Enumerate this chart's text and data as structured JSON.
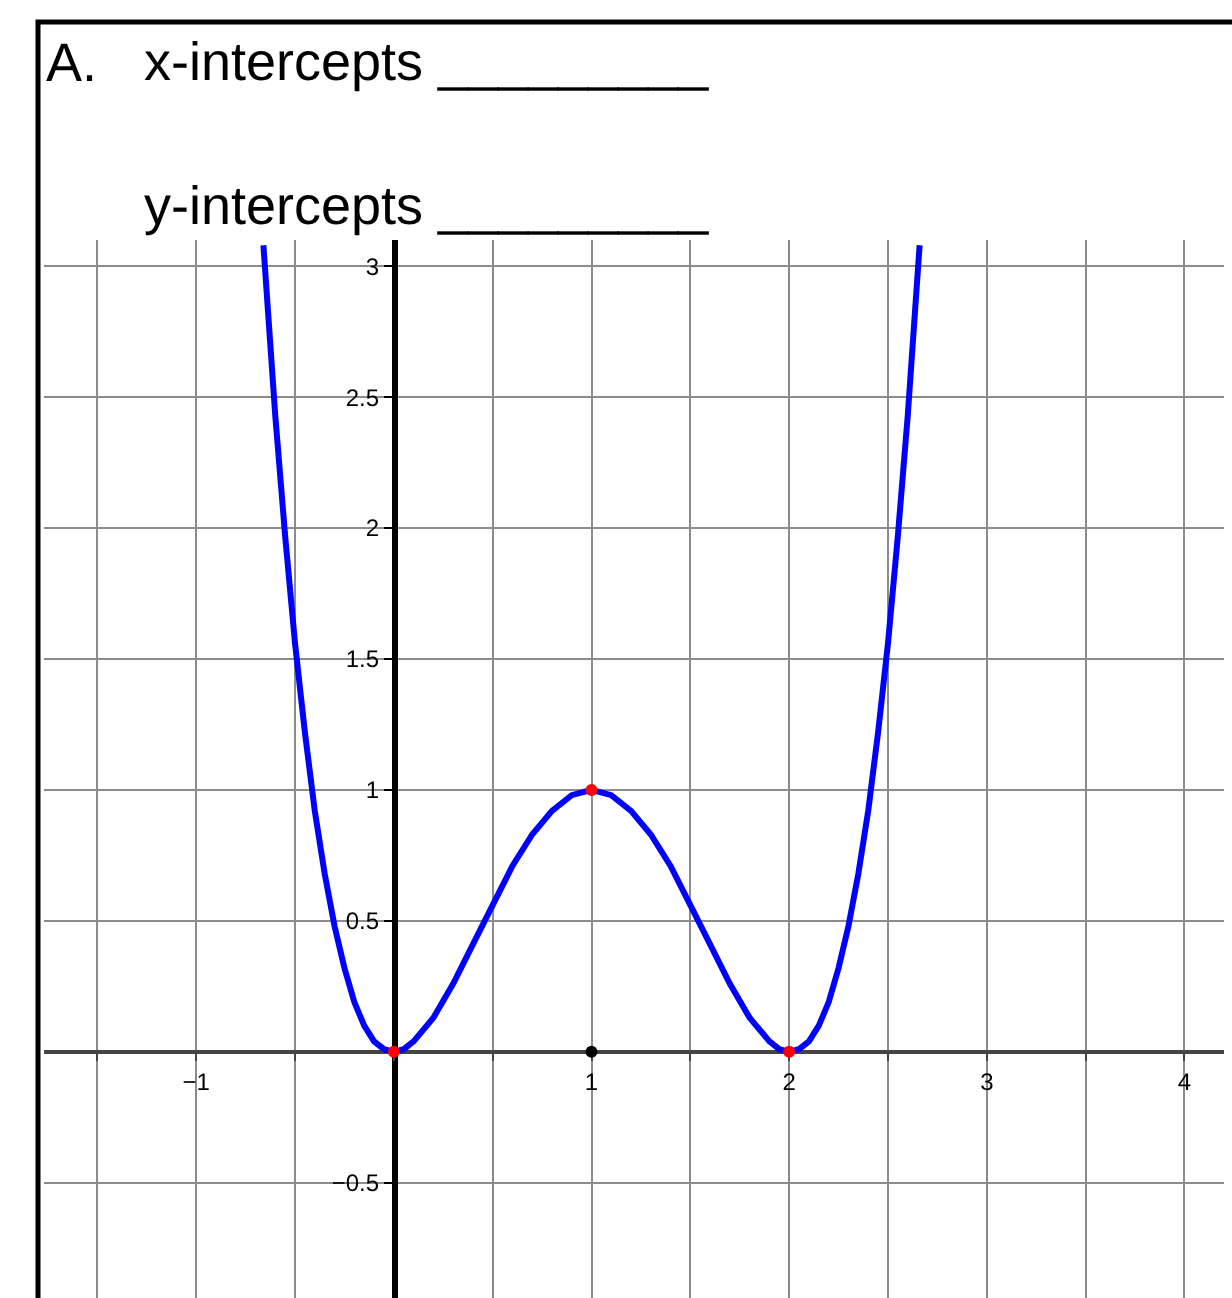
{
  "chart_data": {
    "type": "line",
    "title": "A.",
    "annotations": [
      "x-intercepts _________",
      "y-intercepts _________"
    ],
    "xlim": [
      -1.77,
      4.2
    ],
    "ylim": [
      -0.94,
      3.1
    ],
    "xticks": [
      {
        "value": -1.5,
        "label": null
      },
      {
        "value": -1,
        "label": "−1"
      },
      {
        "value": -0.5,
        "label": null
      },
      {
        "value": 0,
        "label": null
      },
      {
        "value": 0.5,
        "label": null
      },
      1,
      {
        "value": 1.5,
        "label": null
      },
      2,
      {
        "value": 2.5,
        "label": null
      },
      3,
      {
        "value": 3.5,
        "label": null
      },
      4
    ],
    "yticks": [
      {
        "value": -0.5,
        "label": "−0.5"
      },
      {
        "value": 0,
        "label": null
      },
      0.5,
      1,
      1.5,
      2,
      2.5,
      3
    ],
    "grid": true,
    "series": [
      {
        "color": "#0000ff",
        "marker": "none",
        "x": [
          -0.66,
          -0.6,
          -0.55,
          -0.5,
          -0.45,
          -0.4,
          -0.35,
          -0.3,
          -0.25,
          -0.2,
          -0.15,
          -0.1,
          -0.05,
          0,
          0.05,
          0.1,
          0.2,
          0.3,
          0.4,
          0.5,
          0.6,
          0.7,
          0.8,
          0.9,
          1,
          1.1,
          1.2,
          1.3,
          1.4,
          1.5,
          1.6,
          1.7,
          1.8,
          1.9,
          1.95,
          2,
          2.05,
          2.1,
          2.15,
          2.2,
          2.25,
          2.3,
          2.35,
          2.4,
          2.45,
          2.5,
          2.55,
          2.6,
          2.66
        ],
        "values": [
          3.08,
          2.43,
          1.97,
          1.56,
          1.22,
          0.92,
          0.68,
          0.48,
          0.32,
          0.19,
          0.1,
          0.04,
          0.01,
          0,
          0.01,
          0.04,
          0.13,
          0.26,
          0.41,
          0.56,
          0.71,
          0.83,
          0.92,
          0.98,
          1,
          0.98,
          0.92,
          0.83,
          0.71,
          0.56,
          0.41,
          0.26,
          0.13,
          0.04,
          0.01,
          0,
          0.01,
          0.04,
          0.1,
          0.19,
          0.32,
          0.48,
          0.68,
          0.92,
          1.22,
          1.56,
          1.97,
          2.43,
          3.08
        ]
      },
      {
        "type": "scatter",
        "color": "#ff0000",
        "marker": "circle",
        "x": [
          0,
          1,
          2
        ],
        "values": [
          0,
          1,
          0
        ]
      },
      {
        "type": "scatter",
        "color": "#000000",
        "marker": "circle",
        "x": [
          1
        ],
        "values": [
          0
        ]
      }
    ]
  }
}
